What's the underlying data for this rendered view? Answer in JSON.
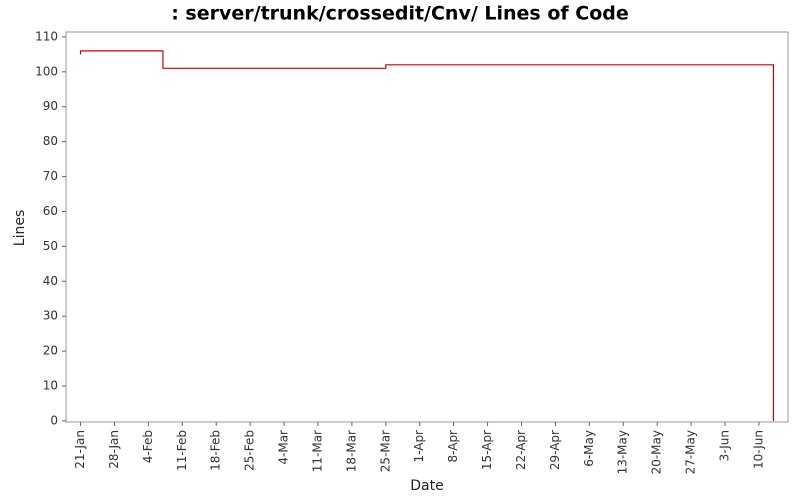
{
  "chart_data": {
    "type": "line",
    "step": true,
    "title": ": server/trunk/crossedit/Cnv/ Lines of Code",
    "x_label": "Date",
    "y_label": "Lines",
    "x": [
      "21-Jan",
      "21-Jan",
      "7-Feb",
      "25-Mar",
      "13-Jun"
    ],
    "series": [
      {
        "name": "Lines",
        "color": "#cc0000",
        "values": [
          105,
          106,
          101,
          102,
          0
        ]
      }
    ],
    "xlim": [
      "18-Jan",
      "16-Jun"
    ],
    "xticks": [
      "21-Jan",
      "28-Jan",
      "4-Feb",
      "11-Feb",
      "18-Feb",
      "25-Feb",
      "4-Mar",
      "11-Mar",
      "18-Mar",
      "25-Mar",
      "1-Apr",
      "8-Apr",
      "15-Apr",
      "22-Apr",
      "29-Apr",
      "6-May",
      "13-May",
      "20-May",
      "27-May",
      "3-Jun",
      "10-Jun"
    ],
    "ylim": [
      -0.3,
      111.4
    ],
    "yticks": [
      0,
      10,
      20,
      30,
      40,
      50,
      60,
      70,
      80,
      90,
      100,
      110
    ],
    "grid": false
  }
}
